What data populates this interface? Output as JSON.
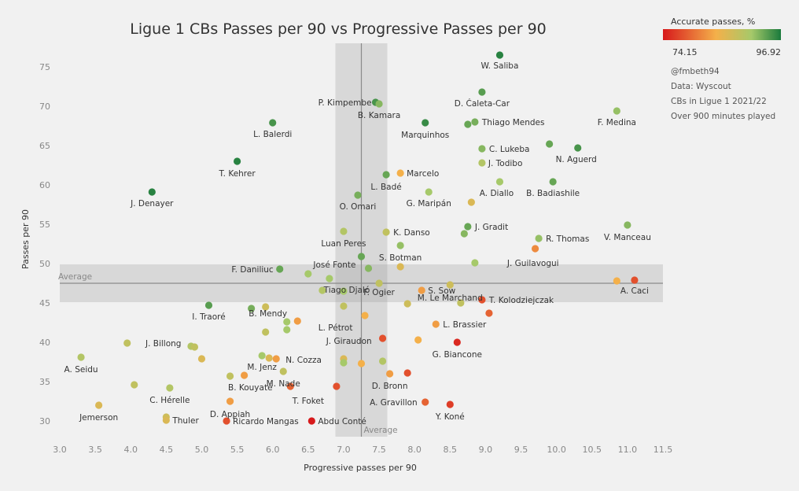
{
  "chart_data": {
    "type": "scatter",
    "title": "Ligue 1 CBs Passes per 90 vs Progressive Passes per 90",
    "xlabel": "Progressive passes per 90",
    "ylabel": "Passes per 90",
    "xlim": [
      3.0,
      11.5
    ],
    "ylim": [
      28,
      78
    ],
    "xticks": [
      "3.0",
      "3.5",
      "4.0",
      "4.5",
      "5.0",
      "5.5",
      "6.0",
      "6.5",
      "7.0",
      "7.5",
      "8.0",
      "8.5",
      "9.0",
      "9.5",
      "10.0",
      "10.5",
      "11.0",
      "11.5"
    ],
    "yticks": [
      "30",
      "35",
      "40",
      "45",
      "50",
      "55",
      "60",
      "65",
      "70",
      "75"
    ],
    "grid": false,
    "average": {
      "x": 7.25,
      "y": 47.5,
      "label": "Average"
    },
    "legend": {
      "title": "Accurate passes, %",
      "min": "74.15",
      "max": "96.92",
      "placement": "top-right",
      "colors": [
        "#d7191c",
        "#f4b04a",
        "#a6c96a",
        "#1a7a3c"
      ]
    },
    "annotations": [
      "@fmbeth94",
      "Data: Wyscout",
      "CBs in Ligue 1 2021/22",
      "Over 900 minutes played"
    ],
    "points": [
      {
        "label": "W. Saliba",
        "x": 9.2,
        "y": 76.5,
        "acc": 96
      },
      {
        "label": "P. Kimpembe",
        "x": 7.45,
        "y": 70.5,
        "acc": 94
      },
      {
        "label": "B. Kamara",
        "x": 7.5,
        "y": 70.3,
        "acc": 90
      },
      {
        "label": "D. Ćaleta-Car",
        "x": 8.95,
        "y": 71.8,
        "acc": 93
      },
      {
        "label": "Thiago Mendes",
        "x": 8.85,
        "y": 68,
        "acc": 91
      },
      {
        "label": "",
        "x": 8.75,
        "y": 67.7,
        "acc": 92
      },
      {
        "label": "Marquinhos",
        "x": 8.15,
        "y": 67.9,
        "acc": 95
      },
      {
        "label": "F. Medina",
        "x": 10.85,
        "y": 69.4,
        "acc": 89
      },
      {
        "label": "L. Balerdi",
        "x": 6.0,
        "y": 67.9,
        "acc": 94
      },
      {
        "label": "C. Lukeba",
        "x": 8.95,
        "y": 64.6,
        "acc": 90
      },
      {
        "label": "",
        "x": 9.9,
        "y": 65.2,
        "acc": 92
      },
      {
        "label": "N. Aguerd",
        "x": 10.3,
        "y": 64.7,
        "acc": 94
      },
      {
        "label": "J. Todibo",
        "x": 8.95,
        "y": 62.8,
        "acc": 87
      },
      {
        "label": "T. Kehrer",
        "x": 5.5,
        "y": 63,
        "acc": 96
      },
      {
        "label": "Marcelo",
        "x": 7.8,
        "y": 61.5,
        "acc": 82
      },
      {
        "label": "L. Badé",
        "x": 7.6,
        "y": 61.3,
        "acc": 92
      },
      {
        "label": "A. Diallo",
        "x": 9.2,
        "y": 60.4,
        "acc": 88
      },
      {
        "label": "B. Badiashile",
        "x": 9.95,
        "y": 60.4,
        "acc": 92
      },
      {
        "label": "J. Denayer",
        "x": 4.3,
        "y": 59.1,
        "acc": 96
      },
      {
        "label": "G. Maripán",
        "x": 8.2,
        "y": 59.1,
        "acc": 88
      },
      {
        "label": "O. Omari",
        "x": 7.2,
        "y": 58.7,
        "acc": 91
      },
      {
        "label": "",
        "x": 8.8,
        "y": 57.8,
        "acc": 84
      },
      {
        "label": "J. Gradit",
        "x": 8.75,
        "y": 54.7,
        "acc": 92
      },
      {
        "label": "V. Manceau",
        "x": 11.0,
        "y": 54.9,
        "acc": 90
      },
      {
        "label": "K. Danso",
        "x": 7.6,
        "y": 54,
        "acc": 86
      },
      {
        "label": "",
        "x": 8.7,
        "y": 53.8,
        "acc": 90
      },
      {
        "label": "Luan Peres",
        "x": 7.0,
        "y": 54.1,
        "acc": 87
      },
      {
        "label": "R. Thomas",
        "x": 9.75,
        "y": 53.2,
        "acc": 89
      },
      {
        "label": "S. Botman",
        "x": 7.8,
        "y": 52.3,
        "acc": 89
      },
      {
        "label": "",
        "x": 9.7,
        "y": 51.9,
        "acc": 80
      },
      {
        "label": "",
        "x": 7.25,
        "y": 50.9,
        "acc": 92
      },
      {
        "label": "J. Guilavogui",
        "x": 8.85,
        "y": 50.1,
        "acc": 88
      },
      {
        "label": "José Fonte",
        "x": 7.35,
        "y": 49.4,
        "acc": 90
      },
      {
        "label": "F. Daniliuc",
        "x": 6.1,
        "y": 49.3,
        "acc": 92
      },
      {
        "label": "",
        "x": 7.8,
        "y": 49.6,
        "acc": 84
      },
      {
        "label": "",
        "x": 6.5,
        "y": 48.7,
        "acc": 88
      },
      {
        "label": "",
        "x": 6.8,
        "y": 48.1,
        "acc": 88
      },
      {
        "label": "F. Ogier",
        "x": 7.5,
        "y": 47.5,
        "acc": 86
      },
      {
        "label": "",
        "x": 6.7,
        "y": 46.6,
        "acc": 87
      },
      {
        "label": "M. Le Marchand",
        "x": 8.5,
        "y": 47.3,
        "acc": 85
      },
      {
        "label": "",
        "x": 10.85,
        "y": 47.8,
        "acc": 82
      },
      {
        "label": "A. Caci",
        "x": 11.1,
        "y": 47.9,
        "acc": 77
      },
      {
        "label": "Tiago Djaló",
        "x": 7.0,
        "y": 46.5,
        "acc": 88
      },
      {
        "label": "S. Sow",
        "x": 8.1,
        "y": 46.6,
        "acc": 81
      },
      {
        "label": "I. Traoré",
        "x": 5.1,
        "y": 44.7,
        "acc": 93
      },
      {
        "label": "",
        "x": 5.7,
        "y": 44.3,
        "acc": 91
      },
      {
        "label": "B. Mendy",
        "x": 5.9,
        "y": 44.5,
        "acc": 85
      },
      {
        "label": "",
        "x": 7.0,
        "y": 44.6,
        "acc": 86
      },
      {
        "label": "T. Kolodziejczak",
        "x": 8.95,
        "y": 45.4,
        "acc": 77
      },
      {
        "label": "",
        "x": 8.65,
        "y": 45,
        "acc": 86
      },
      {
        "label": "",
        "x": 7.9,
        "y": 44.9,
        "acc": 85
      },
      {
        "label": "",
        "x": 9.05,
        "y": 43.7,
        "acc": 78
      },
      {
        "label": "",
        "x": 7.3,
        "y": 43.4,
        "acc": 82
      },
      {
        "label": "",
        "x": 6.35,
        "y": 42.7,
        "acc": 81
      },
      {
        "label": "",
        "x": 6.2,
        "y": 42.6,
        "acc": 88
      },
      {
        "label": "L. Pétrot",
        "x": 6.2,
        "y": 41.6,
        "acc": 88
      },
      {
        "label": "L. Brassier",
        "x": 8.3,
        "y": 42.3,
        "acc": 81
      },
      {
        "label": "",
        "x": 5.9,
        "y": 41.3,
        "acc": 86
      },
      {
        "label": "",
        "x": 7.55,
        "y": 40.5,
        "acc": 77
      },
      {
        "label": "J. Giraudon",
        "x": 8.05,
        "y": 40.3,
        "acc": 82
      },
      {
        "label": "G. Biancone",
        "x": 8.6,
        "y": 40,
        "acc": 75
      },
      {
        "label": "J. Billong",
        "x": 3.95,
        "y": 39.9,
        "acc": 86
      },
      {
        "label": "",
        "x": 4.85,
        "y": 39.5,
        "acc": 87
      },
      {
        "label": "",
        "x": 4.9,
        "y": 39.4,
        "acc": 86
      },
      {
        "label": "M. Jenz",
        "x": 5.85,
        "y": 38.3,
        "acc": 88
      },
      {
        "label": "",
        "x": 5.95,
        "y": 38,
        "acc": 84
      },
      {
        "label": "N. Cozza",
        "x": 6.05,
        "y": 37.9,
        "acc": 81
      },
      {
        "label": "A. Seidu",
        "x": 3.3,
        "y": 38.1,
        "acc": 87
      },
      {
        "label": "",
        "x": 5.0,
        "y": 37.9,
        "acc": 84
      },
      {
        "label": "",
        "x": 7.0,
        "y": 37.9,
        "acc": 84
      },
      {
        "label": "",
        "x": 7.0,
        "y": 37.4,
        "acc": 88
      },
      {
        "label": "",
        "x": 7.55,
        "y": 37.6,
        "acc": 87
      },
      {
        "label": "",
        "x": 7.25,
        "y": 37.3,
        "acc": 82
      },
      {
        "label": "M. Nade",
        "x": 6.15,
        "y": 36.3,
        "acc": 86
      },
      {
        "label": "",
        "x": 5.4,
        "y": 35.7,
        "acc": 86
      },
      {
        "label": "",
        "x": 5.6,
        "y": 35.8,
        "acc": 81
      },
      {
        "label": "D. Bronn",
        "x": 7.65,
        "y": 36,
        "acc": 81
      },
      {
        "label": "",
        "x": 7.9,
        "y": 36.1,
        "acc": 77
      },
      {
        "label": "",
        "x": 4.05,
        "y": 34.6,
        "acc": 86
      },
      {
        "label": "C. Hérelle",
        "x": 4.55,
        "y": 34.2,
        "acc": 87
      },
      {
        "label": "B. Kouyaté",
        "x": 6.25,
        "y": 34.4,
        "acc": 78
      },
      {
        "label": "T. Foket",
        "x": 6.9,
        "y": 34.4,
        "acc": 77
      },
      {
        "label": "D. Appiah",
        "x": 5.4,
        "y": 32.5,
        "acc": 81
      },
      {
        "label": "A. Gravillon",
        "x": 8.15,
        "y": 32.4,
        "acc": 78
      },
      {
        "label": "Y. Koné",
        "x": 8.5,
        "y": 32.1,
        "acc": 76
      },
      {
        "label": "Jemerson",
        "x": 3.55,
        "y": 32,
        "acc": 84
      },
      {
        "label": "",
        "x": 4.5,
        "y": 30.5,
        "acc": 85
      },
      {
        "label": "Thuler",
        "x": 4.5,
        "y": 30.1,
        "acc": 84
      },
      {
        "label": "Ricardo Mangas",
        "x": 5.35,
        "y": 30.0,
        "acc": 77
      },
      {
        "label": "Abdu Conté",
        "x": 6.55,
        "y": 30.0,
        "acc": 74.2
      }
    ]
  }
}
